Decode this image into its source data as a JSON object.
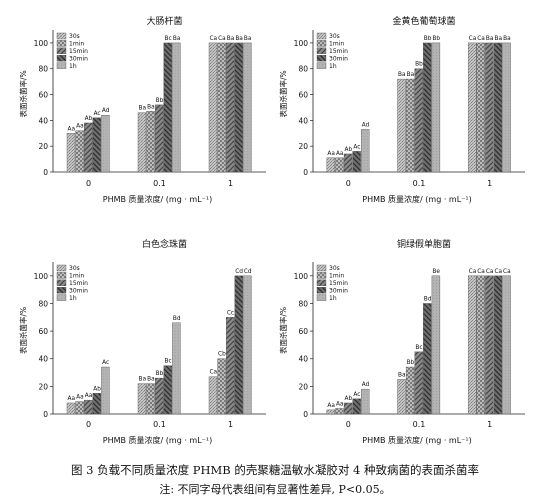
{
  "figure": {
    "caption_line1": "图 3  负载不同质量浓度 PHMB 的壳聚糖温敏水凝胶对 4 种致病菌的表面杀菌率",
    "caption_line2": "注: 不同字母代表组间有显著性差异, P<0.05。"
  },
  "chart_data": [
    {
      "type": "bar",
      "title": "大肠杆菌",
      "xlabel": "PHMB 质量浓度/ (mg · mL⁻¹)",
      "ylabel": "表面杀菌率/%",
      "ylim": [
        0,
        110
      ],
      "yticks": [
        0,
        20,
        40,
        60,
        80,
        100
      ],
      "categories": [
        "0",
        "0.1",
        "1"
      ],
      "legend": [
        "30s",
        "1min",
        "15min",
        "30min",
        "1h"
      ],
      "series": [
        {
          "name": "30s",
          "values": [
            30,
            46,
            100
          ],
          "labels": [
            "Aa",
            "Ba",
            "Ca"
          ]
        },
        {
          "name": "1min",
          "values": [
            32,
            47,
            100
          ],
          "labels": [
            "Aa",
            "Ba",
            "Ca"
          ]
        },
        {
          "name": "15min",
          "values": [
            38,
            52,
            100
          ],
          "labels": [
            "Ab",
            "Bb",
            "Ba"
          ]
        },
        {
          "name": "30min",
          "values": [
            42,
            100,
            100
          ],
          "labels": [
            "Ac",
            "Bc",
            "Ba"
          ]
        },
        {
          "name": "1h",
          "values": [
            44,
            100,
            100
          ],
          "labels": [
            "Ad",
            "Ba",
            "Ba"
          ]
        }
      ]
    },
    {
      "type": "bar",
      "title": "金黄色葡萄球菌",
      "xlabel": "PHMB 质量浓度/ (mg · mL⁻¹)",
      "ylabel": "表面杀菌率/%",
      "ylim": [
        0,
        110
      ],
      "yticks": [
        0,
        20,
        40,
        60,
        80,
        100
      ],
      "categories": [
        "0",
        "0.1",
        "1"
      ],
      "legend": [
        "30s",
        "1min",
        "15min",
        "30min",
        "1h"
      ],
      "series": [
        {
          "name": "30s",
          "values": [
            11,
            72,
            100
          ],
          "labels": [
            "Aa",
            "Ba",
            "Ca"
          ]
        },
        {
          "name": "1min",
          "values": [
            11,
            72,
            100
          ],
          "labels": [
            "Aa",
            "Ba",
            "Ca"
          ]
        },
        {
          "name": "15min",
          "values": [
            14,
            80,
            100
          ],
          "labels": [
            "Ab",
            "Bb",
            "Ba"
          ]
        },
        {
          "name": "30min",
          "values": [
            16,
            100,
            100
          ],
          "labels": [
            "Ac",
            "Bb",
            "Ba"
          ]
        },
        {
          "name": "1h",
          "values": [
            33,
            100,
            100
          ],
          "labels": [
            "Ad",
            "Bb",
            "Ba"
          ]
        }
      ]
    },
    {
      "type": "bar",
      "title": "白色念珠菌",
      "xlabel": "PHMB 质量浓度/ (mg · mL⁻¹)",
      "ylabel": "表面杀菌率/%",
      "ylim": [
        0,
        110
      ],
      "yticks": [
        0,
        20,
        40,
        60,
        80,
        100
      ],
      "categories": [
        "0",
        "0.1",
        "1"
      ],
      "legend": [
        "30s",
        "1min",
        "15min",
        "30min",
        "1h"
      ],
      "series": [
        {
          "name": "30s",
          "values": [
            8,
            22,
            27
          ],
          "labels": [
            "Aa",
            "Ba",
            "Ca"
          ]
        },
        {
          "name": "1min",
          "values": [
            9,
            22,
            40
          ],
          "labels": [
            "Aa",
            "Ba",
            "Cb"
          ]
        },
        {
          "name": "15min",
          "values": [
            10,
            26,
            70
          ],
          "labels": [
            "Aa",
            "Bb",
            "Cc"
          ]
        },
        {
          "name": "30min",
          "values": [
            15,
            35,
            100
          ],
          "labels": [
            "Ab",
            "Bc",
            "Cd"
          ]
        },
        {
          "name": "1h",
          "values": [
            34,
            66,
            100
          ],
          "labels": [
            "Ac",
            "Bd",
            "Cd"
          ]
        }
      ]
    },
    {
      "type": "bar",
      "title": "铜绿假单胞菌",
      "xlabel": "PHMB 质量浓度/ (mg · mL⁻¹)",
      "ylabel": "表面杀菌率/%",
      "ylim": [
        0,
        110
      ],
      "yticks": [
        0,
        20,
        40,
        60,
        80,
        100
      ],
      "categories": [
        "0",
        "0.1",
        "1"
      ],
      "legend": [
        "30s",
        "1min",
        "15min",
        "30min",
        "1h"
      ],
      "series": [
        {
          "name": "30s",
          "values": [
            3,
            25,
            100
          ],
          "labels": [
            "Aa",
            "Ba",
            "Ca"
          ]
        },
        {
          "name": "1min",
          "values": [
            4,
            34,
            100
          ],
          "labels": [
            "Aa",
            "Bb",
            "Ca"
          ]
        },
        {
          "name": "15min",
          "values": [
            8,
            45,
            100
          ],
          "labels": [
            "Ab",
            "Bc",
            "Ca"
          ]
        },
        {
          "name": "30min",
          "values": [
            11,
            80,
            100
          ],
          "labels": [
            "Ac",
            "Bd",
            "Ca"
          ]
        },
        {
          "name": "1h",
          "values": [
            18,
            100,
            100
          ],
          "labels": [
            "Ad",
            "Be",
            "Ca"
          ]
        }
      ]
    }
  ]
}
